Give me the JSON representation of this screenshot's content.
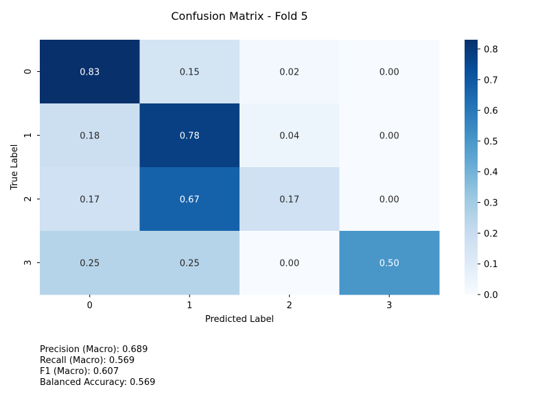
{
  "chart_data": {
    "type": "heatmap",
    "title": "Confusion Matrix - Fold 5",
    "xlabel": "Predicted Label",
    "ylabel": "True Label",
    "x_categories": [
      "0",
      "1",
      "2",
      "3"
    ],
    "y_categories": [
      "0",
      "1",
      "2",
      "3"
    ],
    "values": [
      [
        0.83,
        0.15,
        0.02,
        0.0
      ],
      [
        0.18,
        0.78,
        0.04,
        0.0
      ],
      [
        0.17,
        0.67,
        0.17,
        0.0
      ],
      [
        0.25,
        0.25,
        0.0,
        0.5
      ]
    ],
    "value_format": "0.00",
    "colormap": "Blues",
    "colorbar": {
      "range": [
        0.0,
        0.83
      ],
      "ticks": [
        "0.0",
        "0.1",
        "0.2",
        "0.3",
        "0.4",
        "0.5",
        "0.6",
        "0.7",
        "0.8"
      ]
    }
  },
  "metrics": {
    "precision": "Precision (Macro): 0.689",
    "recall": "Recall (Macro): 0.569",
    "f1": "F1 (Macro): 0.607",
    "balanced_accuracy": "Balanced Accuracy: 0.569"
  }
}
